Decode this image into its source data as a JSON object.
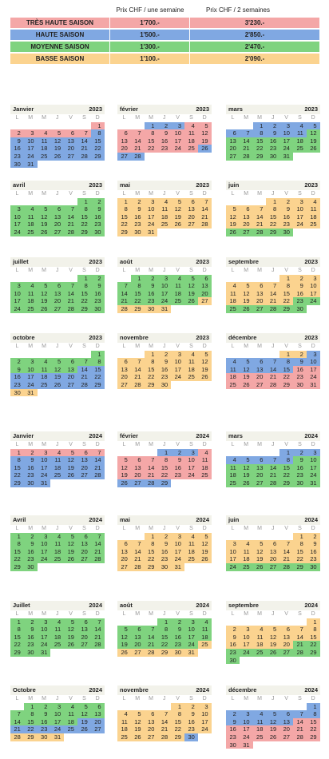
{
  "prices": {
    "headers": [
      "Prix CHF / une semaine",
      "Prix CHF / 2 semaines"
    ],
    "seasons": [
      {
        "name": "TRÈS HAUTE SAISON",
        "week": "1'700.-",
        "two_weeks": "3'230.-",
        "color": "#f4a7a7"
      },
      {
        "name": "HAUTE SAISON",
        "week": "1'500.-",
        "two_weeks": "2'850.-",
        "color": "#80a8e2"
      },
      {
        "name": "MOYENNE SAISON",
        "week": "1'300.-",
        "two_weeks": "2'470.-",
        "color": "#7fd37f"
      },
      {
        "name": "BASSE SAISON",
        "week": "1'100.-",
        "two_weeks": "2'090.-",
        "color": "#fbd38f"
      }
    ]
  },
  "weekdays": [
    "L",
    "M",
    "M",
    "J",
    "V",
    "S",
    "D"
  ],
  "months": [
    {
      "name": "Janvier",
      "year": 2023,
      "weeks": [
        [
          null,
          null,
          null,
          null,
          null,
          null,
          1
        ],
        [
          2,
          3,
          4,
          5,
          6,
          7,
          8
        ],
        [
          9,
          10,
          11,
          12,
          13,
          14,
          15
        ],
        [
          16,
          17,
          18,
          19,
          20,
          21,
          22
        ],
        [
          23,
          24,
          25,
          26,
          27,
          28,
          29
        ],
        [
          30,
          31
        ]
      ],
      "periods": [
        [
          0,
          1,
          7
        ],
        [
          1,
          8,
          31
        ]
      ]
    },
    {
      "name": "février",
      "year": 2023,
      "weeks": [
        [
          null,
          null,
          1,
          2,
          3,
          4,
          5
        ],
        [
          6,
          7,
          8,
          9,
          10,
          11,
          12
        ],
        [
          13,
          14,
          15,
          16,
          17,
          18,
          19
        ],
        [
          20,
          21,
          22,
          23,
          24,
          25,
          26
        ],
        [
          27,
          28
        ]
      ],
      "periods": [
        [
          1,
          1,
          3
        ],
        [
          0,
          4,
          25
        ],
        [
          1,
          26,
          28
        ]
      ]
    },
    {
      "name": "mars",
      "year": 2023,
      "weeks": [
        [
          null,
          null,
          1,
          2,
          3,
          4,
          5
        ],
        [
          6,
          7,
          8,
          9,
          10,
          11,
          12
        ],
        [
          13,
          14,
          15,
          16,
          17,
          18,
          19
        ],
        [
          20,
          21,
          22,
          23,
          24,
          25,
          26
        ],
        [
          27,
          28,
          29,
          30,
          31
        ]
      ],
      "periods": [
        [
          1,
          1,
          11
        ],
        [
          2,
          12,
          31
        ]
      ]
    },
    {
      "name": "avril",
      "year": 2023,
      "weeks": [
        [
          null,
          null,
          null,
          null,
          null,
          1,
          2
        ],
        [
          3,
          4,
          5,
          6,
          7,
          8,
          9
        ],
        [
          10,
          11,
          12,
          13,
          14,
          15,
          16
        ],
        [
          17,
          18,
          19,
          20,
          21,
          22,
          23
        ],
        [
          24,
          25,
          26,
          27,
          28,
          29,
          30
        ]
      ],
      "periods": [
        [
          2,
          1,
          30
        ]
      ]
    },
    {
      "name": "mai",
      "year": 2023,
      "weeks": [
        [
          1,
          2,
          3,
          4,
          5,
          6,
          7
        ],
        [
          8,
          9,
          10,
          11,
          12,
          13,
          14
        ],
        [
          15,
          16,
          17,
          18,
          19,
          20,
          21
        ],
        [
          22,
          23,
          24,
          25,
          26,
          27,
          28
        ],
        [
          29,
          30,
          31
        ]
      ],
      "periods": [
        [
          3,
          1,
          31
        ]
      ]
    },
    {
      "name": "juin",
      "year": 2023,
      "weeks": [
        [
          null,
          null,
          null,
          1,
          2,
          3,
          4
        ],
        [
          5,
          6,
          7,
          8,
          9,
          10,
          11
        ],
        [
          12,
          13,
          14,
          15,
          16,
          17,
          18
        ],
        [
          19,
          20,
          21,
          22,
          23,
          24,
          25
        ],
        [
          26,
          27,
          28,
          29,
          30
        ]
      ],
      "periods": [
        [
          3,
          1,
          25
        ],
        [
          2,
          26,
          30
        ]
      ]
    },
    {
      "name": "juillet",
      "year": 2023,
      "weeks": [
        [
          null,
          null,
          null,
          null,
          null,
          1,
          2
        ],
        [
          3,
          4,
          5,
          6,
          7,
          8,
          9
        ],
        [
          10,
          11,
          12,
          13,
          14,
          15,
          16
        ],
        [
          17,
          18,
          19,
          20,
          21,
          22,
          23
        ],
        [
          24,
          25,
          26,
          27,
          28,
          29,
          30
        ]
      ],
      "periods": [
        [
          2,
          1,
          30
        ]
      ]
    },
    {
      "name": "août",
      "year": 2023,
      "weeks": [
        [
          null,
          1,
          2,
          3,
          4,
          5,
          6
        ],
        [
          7,
          8,
          9,
          10,
          11,
          12,
          13
        ],
        [
          14,
          15,
          16,
          17,
          18,
          19,
          20
        ],
        [
          21,
          22,
          23,
          24,
          25,
          26,
          27
        ],
        [
          28,
          29,
          30,
          31
        ]
      ],
      "periods": [
        [
          2,
          1,
          26
        ],
        [
          3,
          27,
          31
        ]
      ]
    },
    {
      "name": "septembre",
      "year": 2023,
      "weeks": [
        [
          null,
          null,
          null,
          null,
          1,
          2,
          3
        ],
        [
          4,
          5,
          6,
          7,
          8,
          9,
          10
        ],
        [
          11,
          12,
          13,
          14,
          15,
          16,
          17
        ],
        [
          18,
          19,
          20,
          21,
          22,
          23,
          24
        ],
        [
          25,
          26,
          27,
          28,
          29,
          30
        ]
      ],
      "periods": [
        [
          3,
          1,
          22
        ],
        [
          2,
          23,
          30
        ]
      ]
    },
    {
      "name": "octobre",
      "year": 2023,
      "weeks": [
        [
          null,
          null,
          null,
          null,
          null,
          null,
          1
        ],
        [
          2,
          3,
          4,
          5,
          6,
          7,
          8
        ],
        [
          9,
          10,
          11,
          12,
          13,
          14,
          15
        ],
        [
          16,
          17,
          18,
          19,
          20,
          21,
          22
        ],
        [
          23,
          24,
          25,
          26,
          27,
          28,
          29
        ],
        [
          30,
          31
        ]
      ],
      "periods": [
        [
          2,
          1,
          13
        ],
        [
          1,
          14,
          29
        ],
        [
          3,
          30,
          31
        ]
      ]
    },
    {
      "name": "novembre",
      "year": 2023,
      "weeks": [
        [
          null,
          null,
          1,
          2,
          3,
          4,
          5
        ],
        [
          6,
          7,
          8,
          9,
          10,
          11,
          12
        ],
        [
          13,
          14,
          15,
          16,
          17,
          18,
          19
        ],
        [
          20,
          21,
          22,
          23,
          24,
          25,
          26
        ],
        [
          27,
          28,
          29,
          30
        ]
      ],
      "periods": [
        [
          3,
          1,
          30
        ]
      ]
    },
    {
      "name": "décembre",
      "year": 2023,
      "weeks": [
        [
          null,
          null,
          null,
          null,
          1,
          2,
          3
        ],
        [
          4,
          5,
          6,
          7,
          8,
          9,
          10
        ],
        [
          11,
          12,
          13,
          14,
          15,
          16,
          17
        ],
        [
          18,
          19,
          20,
          21,
          22,
          23,
          24
        ],
        [
          25,
          26,
          27,
          28,
          29,
          30,
          31
        ]
      ],
      "periods": [
        [
          3,
          1,
          2
        ],
        [
          1,
          3,
          15
        ],
        [
          0,
          16,
          31
        ]
      ]
    },
    {
      "name": "Janvier",
      "year": 2024,
      "weeks": [
        [
          1,
          2,
          3,
          4,
          5,
          6,
          7
        ],
        [
          8,
          9,
          10,
          11,
          12,
          13,
          14
        ],
        [
          15,
          16,
          17,
          18,
          19,
          20,
          21
        ],
        [
          22,
          23,
          24,
          25,
          26,
          27,
          28
        ],
        [
          29,
          30,
          31
        ]
      ],
      "periods": [
        [
          0,
          1,
          7
        ],
        [
          1,
          8,
          31
        ]
      ]
    },
    {
      "name": "février",
      "year": 2024,
      "weeks": [
        [
          null,
          null,
          null,
          1,
          2,
          3,
          4
        ],
        [
          5,
          6,
          7,
          8,
          9,
          10,
          11
        ],
        [
          12,
          13,
          14,
          15,
          16,
          17,
          18
        ],
        [
          19,
          20,
          21,
          22,
          23,
          24,
          25
        ],
        [
          26,
          27,
          28,
          29
        ]
      ],
      "periods": [
        [
          1,
          1,
          3
        ],
        [
          0,
          4,
          25
        ],
        [
          1,
          26,
          29
        ]
      ]
    },
    {
      "name": "mars",
      "year": 2024,
      "weeks": [
        [
          null,
          null,
          null,
          null,
          1,
          2,
          3
        ],
        [
          4,
          5,
          6,
          7,
          8,
          9,
          10
        ],
        [
          11,
          12,
          13,
          14,
          15,
          16,
          17
        ],
        [
          18,
          19,
          20,
          21,
          22,
          23,
          24
        ],
        [
          25,
          26,
          27,
          28,
          29,
          30,
          31
        ]
      ],
      "periods": [
        [
          1,
          1,
          8
        ],
        [
          2,
          9,
          31
        ]
      ]
    },
    {
      "name": "Avril",
      "year": 2024,
      "weeks": [
        [
          1,
          2,
          3,
          4,
          5,
          6,
          7
        ],
        [
          8,
          9,
          10,
          11,
          12,
          13,
          14
        ],
        [
          15,
          16,
          17,
          18,
          19,
          20,
          21
        ],
        [
          22,
          23,
          24,
          25,
          26,
          27,
          28
        ],
        [
          29,
          30
        ]
      ],
      "periods": [
        [
          2,
          1,
          30
        ]
      ]
    },
    {
      "name": "mai",
      "year": 2024,
      "weeks": [
        [
          null,
          null,
          1,
          2,
          3,
          4,
          5
        ],
        [
          6,
          7,
          8,
          9,
          10,
          11,
          12
        ],
        [
          13,
          14,
          15,
          16,
          17,
          18,
          19
        ],
        [
          20,
          21,
          22,
          23,
          24,
          25,
          26
        ],
        [
          27,
          28,
          29,
          30,
          31
        ]
      ],
      "periods": [
        [
          3,
          1,
          31
        ]
      ]
    },
    {
      "name": "juin",
      "year": 2024,
      "weeks": [
        [
          null,
          null,
          null,
          null,
          null,
          1,
          2
        ],
        [
          3,
          4,
          5,
          6,
          7,
          8,
          9
        ],
        [
          10,
          11,
          12,
          13,
          14,
          15,
          16
        ],
        [
          17,
          18,
          19,
          20,
          21,
          22,
          23
        ],
        [
          24,
          25,
          26,
          27,
          28,
          29,
          30
        ]
      ],
      "periods": [
        [
          3,
          1,
          23
        ],
        [
          2,
          24,
          30
        ]
      ]
    },
    {
      "name": "Juillet",
      "year": 2024,
      "weeks": [
        [
          1,
          2,
          3,
          4,
          5,
          6,
          7
        ],
        [
          8,
          9,
          10,
          11,
          12,
          13,
          14
        ],
        [
          15,
          16,
          17,
          18,
          19,
          20,
          21
        ],
        [
          22,
          23,
          24,
          25,
          26,
          27,
          28
        ],
        [
          29,
          30,
          31
        ]
      ],
      "periods": [
        [
          2,
          1,
          31
        ]
      ]
    },
    {
      "name": "août",
      "year": 2024,
      "weeks": [
        [
          null,
          null,
          null,
          1,
          2,
          3,
          4
        ],
        [
          5,
          6,
          7,
          8,
          9,
          10,
          11
        ],
        [
          12,
          13,
          14,
          15,
          16,
          17,
          18
        ],
        [
          19,
          20,
          21,
          22,
          23,
          24,
          25
        ],
        [
          26,
          27,
          28,
          29,
          30,
          31
        ]
      ],
      "periods": [
        [
          2,
          1,
          24
        ],
        [
          3,
          25,
          31
        ]
      ]
    },
    {
      "name": "septembre",
      "year": 2024,
      "weeks": [
        [
          null,
          null,
          null,
          null,
          null,
          null,
          1
        ],
        [
          2,
          3,
          4,
          5,
          6,
          7,
          8
        ],
        [
          9,
          10,
          11,
          12,
          13,
          14,
          15
        ],
        [
          16,
          17,
          18,
          19,
          20,
          21,
          22
        ],
        [
          23,
          24,
          25,
          26,
          27,
          28,
          29
        ],
        [
          30
        ]
      ],
      "periods": [
        [
          3,
          1,
          20
        ],
        [
          2,
          21,
          30
        ]
      ]
    },
    {
      "name": "Octobre",
      "year": 2024,
      "weeks": [
        [
          null,
          1,
          2,
          3,
          4,
          5,
          6
        ],
        [
          7,
          8,
          9,
          10,
          11,
          12,
          13
        ],
        [
          14,
          15,
          16,
          17,
          18,
          19,
          20
        ],
        [
          21,
          22,
          23,
          24,
          25,
          26,
          27
        ],
        [
          28,
          29,
          30,
          31
        ]
      ],
      "periods": [
        [
          2,
          1,
          18
        ],
        [
          1,
          19,
          27
        ],
        [
          3,
          28,
          31
        ]
      ]
    },
    {
      "name": "novembre",
      "year": 2024,
      "weeks": [
        [
          null,
          null,
          null,
          null,
          1,
          2,
          3
        ],
        [
          4,
          5,
          6,
          7,
          8,
          9,
          10
        ],
        [
          11,
          12,
          13,
          14,
          15,
          16,
          17
        ],
        [
          18,
          19,
          20,
          21,
          22,
          23,
          24
        ],
        [
          25,
          26,
          27,
          28,
          29,
          30
        ]
      ],
      "periods": [
        [
          3,
          1,
          29
        ],
        [
          1,
          30,
          30
        ]
      ]
    },
    {
      "name": "décembre",
      "year": 2024,
      "weeks": [
        [
          null,
          null,
          null,
          null,
          null,
          null,
          1
        ],
        [
          2,
          3,
          4,
          5,
          6,
          7,
          8
        ],
        [
          9,
          10,
          11,
          12,
          13,
          14,
          15
        ],
        [
          16,
          17,
          18,
          19,
          20,
          21,
          22
        ],
        [
          23,
          24,
          25,
          26,
          27,
          28,
          29
        ],
        [
          30,
          31
        ]
      ],
      "periods": [
        [
          1,
          1,
          13
        ],
        [
          0,
          14,
          31
        ]
      ]
    }
  ]
}
